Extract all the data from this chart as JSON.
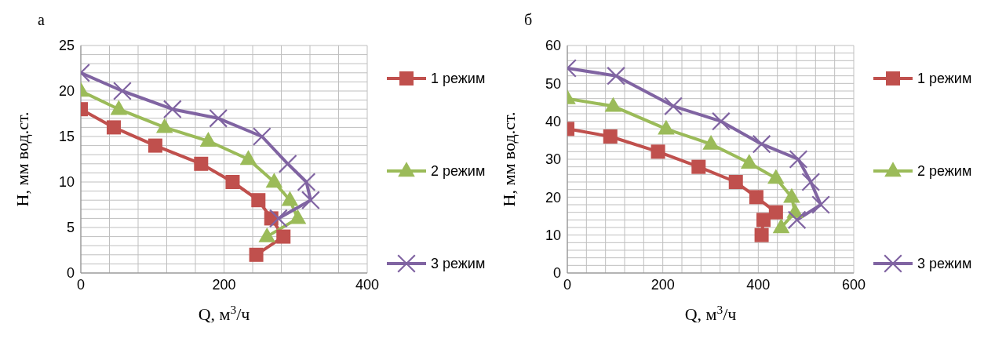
{
  "chart_data": [
    {
      "type": "line",
      "title": "а",
      "xlabel": "Q, м$^{3}$/ч",
      "ylabel": "H, мм вод.ст.",
      "xlim": [
        0,
        400
      ],
      "xticks": [
        0,
        {
          "value": 40,
          "label": null
        },
        {
          "value": 80,
          "label": null
        },
        {
          "value": 120,
          "label": null
        },
        {
          "value": 160,
          "label": null
        },
        200,
        {
          "value": 240,
          "label": null
        },
        {
          "value": 280,
          "label": null
        },
        {
          "value": 320,
          "label": null
        },
        {
          "value": 360,
          "label": null
        },
        400
      ],
      "ylim": [
        0,
        25
      ],
      "yticks": [
        0,
        {
          "value": 1,
          "label": null
        },
        {
          "value": 2,
          "label": null
        },
        {
          "value": 3,
          "label": null
        },
        {
          "value": 4,
          "label": null
        },
        5,
        {
          "value": 6,
          "label": null
        },
        {
          "value": 7,
          "label": null
        },
        {
          "value": 8,
          "label": null
        },
        {
          "value": 9,
          "label": null
        },
        10,
        {
          "value": 11,
          "label": null
        },
        {
          "value": 12,
          "label": null
        },
        {
          "value": 13,
          "label": null
        },
        {
          "value": 14,
          "label": null
        },
        15,
        {
          "value": 16,
          "label": null
        },
        {
          "value": 17,
          "label": null
        },
        {
          "value": 18,
          "label": null
        },
        {
          "value": 19,
          "label": null
        },
        20,
        {
          "value": 21,
          "label": null
        },
        {
          "value": 22,
          "label": null
        },
        {
          "value": 23,
          "label": null
        },
        {
          "value": 24,
          "label": null
        },
        25
      ],
      "grid": true,
      "legend": "right",
      "line_style": "solid",
      "series": [
        {
          "name": "1 режим",
          "color": "#c0504d",
          "marker": "square",
          "x": [
            0,
            46,
            104,
            168,
            212,
            248,
            266,
            283,
            245
          ],
          "values": [
            18,
            16,
            14,
            12,
            10,
            8,
            6,
            4,
            2
          ]
        },
        {
          "name": "2 режим",
          "color": "#9bbb59",
          "marker": "triangle",
          "x": [
            0,
            53,
            117,
            178,
            234,
            270,
            292,
            303,
            260
          ],
          "values": [
            20,
            18,
            16,
            14.5,
            12.5,
            10,
            8,
            6,
            4
          ]
        },
        {
          "name": "3 режим",
          "color": "#8064a2",
          "marker": "cross",
          "x": [
            0,
            58,
            128,
            192,
            253,
            289,
            315,
            321,
            276
          ],
          "values": [
            22,
            20,
            18,
            17,
            15,
            12,
            10,
            8,
            6
          ]
        }
      ]
    },
    {
      "type": "line",
      "title": "б",
      "xlabel": "Q, м$^{3}$/ч",
      "ylabel": "H, мм вод.ст.",
      "xlim": [
        0,
        600
      ],
      "xticks": [
        0,
        {
          "value": 40,
          "label": null
        },
        {
          "value": 80,
          "label": null
        },
        {
          "value": 120,
          "label": null
        },
        {
          "value": 160,
          "label": null
        },
        200,
        {
          "value": 240,
          "label": null
        },
        {
          "value": 280,
          "label": null
        },
        {
          "value": 320,
          "label": null
        },
        {
          "value": 360,
          "label": null
        },
        400,
        {
          "value": 440,
          "label": null
        },
        {
          "value": 480,
          "label": null
        },
        {
          "value": 520,
          "label": null
        },
        {
          "value": 560,
          "label": null
        },
        600
      ],
      "ylim": [
        0,
        60
      ],
      "yticks": [
        0,
        {
          "value": 2,
          "label": null
        },
        {
          "value": 4,
          "label": null
        },
        {
          "value": 6,
          "label": null
        },
        {
          "value": 8,
          "label": null
        },
        10,
        {
          "value": 12,
          "label": null
        },
        {
          "value": 14,
          "label": null
        },
        {
          "value": 16,
          "label": null
        },
        {
          "value": 18,
          "label": null
        },
        20,
        {
          "value": 22,
          "label": null
        },
        {
          "value": 24,
          "label": null
        },
        {
          "value": 26,
          "label": null
        },
        {
          "value": 28,
          "label": null
        },
        30,
        {
          "value": 32,
          "label": null
        },
        {
          "value": 34,
          "label": null
        },
        {
          "value": 36,
          "label": null
        },
        {
          "value": 38,
          "label": null
        },
        40,
        {
          "value": 42,
          "label": null
        },
        {
          "value": 44,
          "label": null
        },
        {
          "value": 46,
          "label": null
        },
        {
          "value": 48,
          "label": null
        },
        50,
        {
          "value": 52,
          "label": null
        },
        {
          "value": 54,
          "label": null
        },
        {
          "value": 56,
          "label": null
        },
        {
          "value": 58,
          "label": null
        },
        60
      ],
      "grid": true,
      "legend": "right",
      "line_style": "solid",
      "series": [
        {
          "name": "1 режим",
          "color": "#c0504d",
          "marker": "square",
          "x": [
            0,
            90,
            190,
            275,
            353,
            396,
            437,
            411,
            407
          ],
          "values": [
            38,
            36,
            32,
            28,
            24,
            20,
            16,
            14,
            10
          ]
        },
        {
          "name": "2 режим",
          "color": "#9bbb59",
          "marker": "triangle",
          "x": [
            0,
            96,
            207,
            301,
            381,
            437,
            470,
            477,
            448
          ],
          "values": [
            46,
            44,
            38,
            34,
            29,
            25,
            20,
            16,
            12
          ]
        },
        {
          "name": "3 режим",
          "color": "#8064a2",
          "marker": "cross",
          "x": [
            0,
            102,
            222,
            322,
            407,
            484,
            510,
            531,
            481
          ],
          "values": [
            54,
            52,
            44,
            40,
            34,
            30,
            24,
            18,
            14
          ]
        }
      ]
    }
  ]
}
